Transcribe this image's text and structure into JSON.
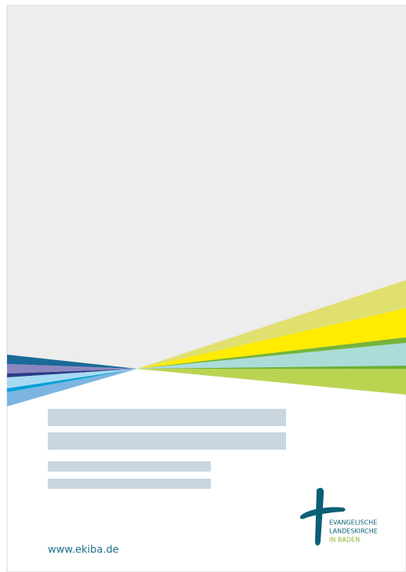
{
  "logo": {
    "lines": [
      "EVANGELISCHE",
      "LANDESKIRCHE",
      "IN BADEN"
    ]
  },
  "footer": {
    "url": "www.ekiba.de"
  }
}
